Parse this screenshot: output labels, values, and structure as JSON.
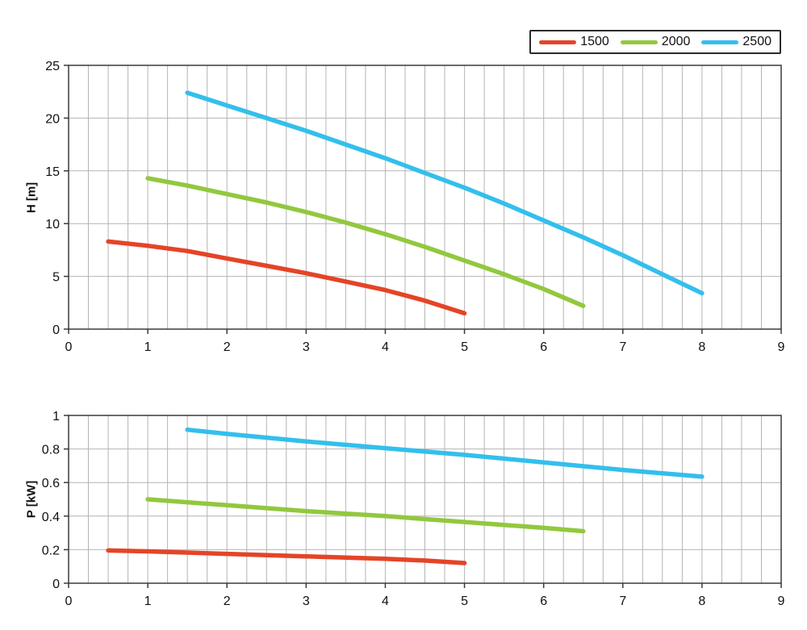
{
  "legend": {
    "entries": [
      {
        "label": "1500",
        "color": "#e54427"
      },
      {
        "label": "2000",
        "color": "#92c83e"
      },
      {
        "label": "2500",
        "color": "#33bfec"
      }
    ]
  },
  "chart_data": [
    {
      "type": "line",
      "title": "",
      "xlabel": "",
      "ylabel": "H [m]",
      "xlim": [
        0,
        9
      ],
      "ylim": [
        0,
        25
      ],
      "xticks": [
        0,
        1,
        2,
        3,
        4,
        5,
        6,
        7,
        8,
        9
      ],
      "yticks": [
        0,
        5,
        10,
        15,
        20,
        25
      ],
      "x_minor_step": 0.25,
      "grid": true,
      "legend_position": "top-right",
      "series": [
        {
          "name": "1500",
          "color": "#e54427",
          "points": [
            [
              0.5,
              8.3
            ],
            [
              1,
              7.9
            ],
            [
              1.5,
              7.4
            ],
            [
              2,
              6.7
            ],
            [
              2.5,
              6.0
            ],
            [
              3,
              5.3
            ],
            [
              3.5,
              4.5
            ],
            [
              4,
              3.7
            ],
            [
              4.5,
              2.7
            ],
            [
              5,
              1.5
            ]
          ]
        },
        {
          "name": "2000",
          "color": "#92c83e",
          "points": [
            [
              1,
              14.3
            ],
            [
              1.5,
              13.6
            ],
            [
              2,
              12.8
            ],
            [
              2.5,
              12.0
            ],
            [
              3,
              11.1
            ],
            [
              3.5,
              10.1
            ],
            [
              4,
              9.0
            ],
            [
              4.5,
              7.8
            ],
            [
              5,
              6.5
            ],
            [
              5.5,
              5.2
            ],
            [
              6,
              3.8
            ],
            [
              6.5,
              2.2
            ]
          ]
        },
        {
          "name": "2500",
          "color": "#33bfec",
          "points": [
            [
              1.5,
              22.4
            ],
            [
              2,
              21.2
            ],
            [
              2.5,
              20.0
            ],
            [
              3,
              18.8
            ],
            [
              3.5,
              17.5
            ],
            [
              4,
              16.2
            ],
            [
              4.5,
              14.8
            ],
            [
              5,
              13.4
            ],
            [
              5.5,
              11.9
            ],
            [
              6,
              10.3
            ],
            [
              6.5,
              8.7
            ],
            [
              7,
              7.0
            ],
            [
              7.5,
              5.2
            ],
            [
              8,
              3.4
            ]
          ]
        }
      ]
    },
    {
      "type": "line",
      "title": "",
      "xlabel": "",
      "ylabel": "P [kW]",
      "xlim": [
        0,
        9
      ],
      "ylim": [
        0,
        1
      ],
      "xticks": [
        0,
        1,
        2,
        3,
        4,
        5,
        6,
        7,
        8,
        9
      ],
      "yticks": [
        0,
        0.2,
        0.4,
        0.6,
        0.8,
        1
      ],
      "x_minor_step": 0.25,
      "grid": true,
      "legend_position": "none",
      "series": [
        {
          "name": "1500",
          "color": "#e54427",
          "points": [
            [
              0.5,
              0.195
            ],
            [
              1,
              0.19
            ],
            [
              2,
              0.175
            ],
            [
              3,
              0.16
            ],
            [
              4,
              0.145
            ],
            [
              4.5,
              0.135
            ],
            [
              5,
              0.12
            ]
          ]
        },
        {
          "name": "2000",
          "color": "#92c83e",
          "points": [
            [
              1,
              0.5
            ],
            [
              2,
              0.465
            ],
            [
              3,
              0.43
            ],
            [
              4,
              0.4
            ],
            [
              5,
              0.365
            ],
            [
              6,
              0.33
            ],
            [
              6.5,
              0.31
            ]
          ]
        },
        {
          "name": "2500",
          "color": "#33bfec",
          "points": [
            [
              1.5,
              0.915
            ],
            [
              2,
              0.89
            ],
            [
              3,
              0.845
            ],
            [
              4,
              0.805
            ],
            [
              5,
              0.765
            ],
            [
              6,
              0.72
            ],
            [
              7,
              0.675
            ],
            [
              8,
              0.635
            ]
          ]
        }
      ]
    }
  ]
}
